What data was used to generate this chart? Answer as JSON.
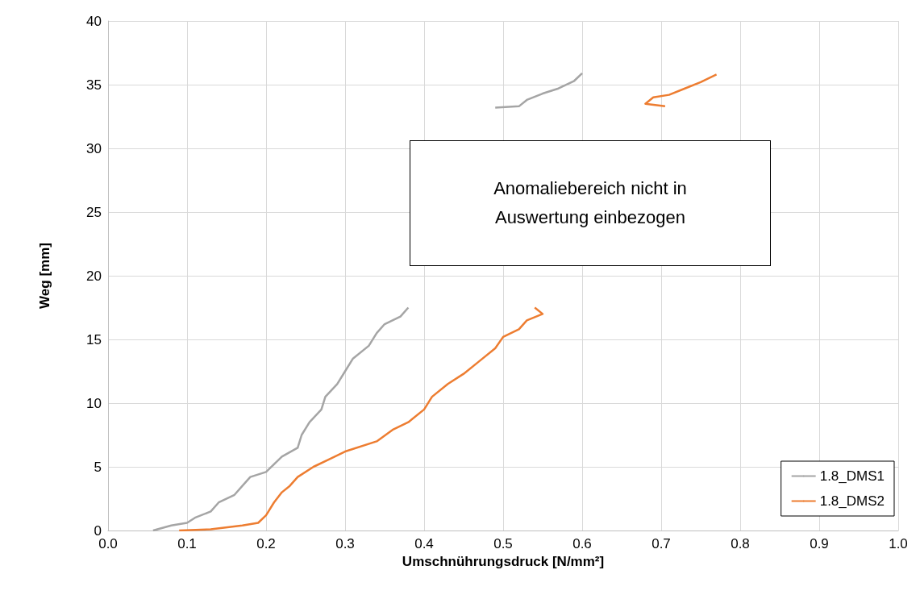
{
  "chart_data": {
    "type": "line",
    "xlabel": "Umschnührungsdruck [N/mm²]",
    "ylabel": "Weg [mm]",
    "annotations": [
      "Anomaliebereich nicht in\nAuswertung einbezogen"
    ],
    "xlim": [
      0,
      1
    ],
    "xticks": [
      {
        "value": 0,
        "label": "0.0"
      },
      0.1,
      0.2,
      0.3,
      0.4,
      0.5,
      0.6,
      0.7,
      0.8,
      0.9,
      {
        "value": 1,
        "label": "1.0"
      }
    ],
    "ylim": [
      0,
      40
    ],
    "yticks": [
      0,
      5,
      10,
      15,
      20,
      25,
      30,
      35,
      40
    ],
    "grid": true,
    "legend": "bottom right",
    "series": [
      {
        "name": "1.8_DMS1",
        "color": "#a5a5a5",
        "x": [
          0.057,
          0.08,
          0.1,
          0.11,
          0.13,
          0.14,
          0.16,
          0.17,
          0.18,
          0.2,
          0.21,
          0.22,
          0.24,
          0.245,
          0.255,
          0.27,
          0.275,
          0.29,
          0.3,
          0.31,
          0.33,
          0.34,
          0.35,
          0.37,
          0.38,
          0.44,
          0.49,
          0.52,
          0.53,
          0.55,
          0.57,
          0.59,
          0.6
        ],
        "values": [
          0,
          0.4,
          0.6,
          1.0,
          1.5,
          2.2,
          2.8,
          3.5,
          4.2,
          4.6,
          5.2,
          5.8,
          6.5,
          7.5,
          8.5,
          9.5,
          10.5,
          11.5,
          12.5,
          13.5,
          14.5,
          15.5,
          16.2,
          16.8,
          17.5,
          null,
          33.2,
          33.3,
          33.8,
          34.3,
          34.7,
          35.3,
          35.9
        ]
      },
      {
        "name": "1.8_DMS2",
        "color": "#ed7d31",
        "x": [
          0.09,
          0.13,
          0.17,
          0.19,
          0.2,
          0.21,
          0.22,
          0.23,
          0.24,
          0.26,
          0.28,
          0.3,
          0.34,
          0.36,
          0.38,
          0.4,
          0.41,
          0.43,
          0.45,
          0.47,
          0.49,
          0.5,
          0.52,
          0.53,
          0.55,
          0.54,
          0.62,
          0.705,
          0.68,
          0.69,
          0.71,
          0.73,
          0.75,
          0.77
        ],
        "values": [
          0,
          0.1,
          0.4,
          0.6,
          1.2,
          2.2,
          3.0,
          3.5,
          4.2,
          5.0,
          5.6,
          6.2,
          7.0,
          7.9,
          8.5,
          9.5,
          10.5,
          11.5,
          12.3,
          13.3,
          14.3,
          15.2,
          15.8,
          16.5,
          17.0,
          17.5,
          null,
          33.3,
          33.5,
          34.0,
          34.2,
          34.7,
          35.2,
          35.8
        ]
      }
    ]
  }
}
